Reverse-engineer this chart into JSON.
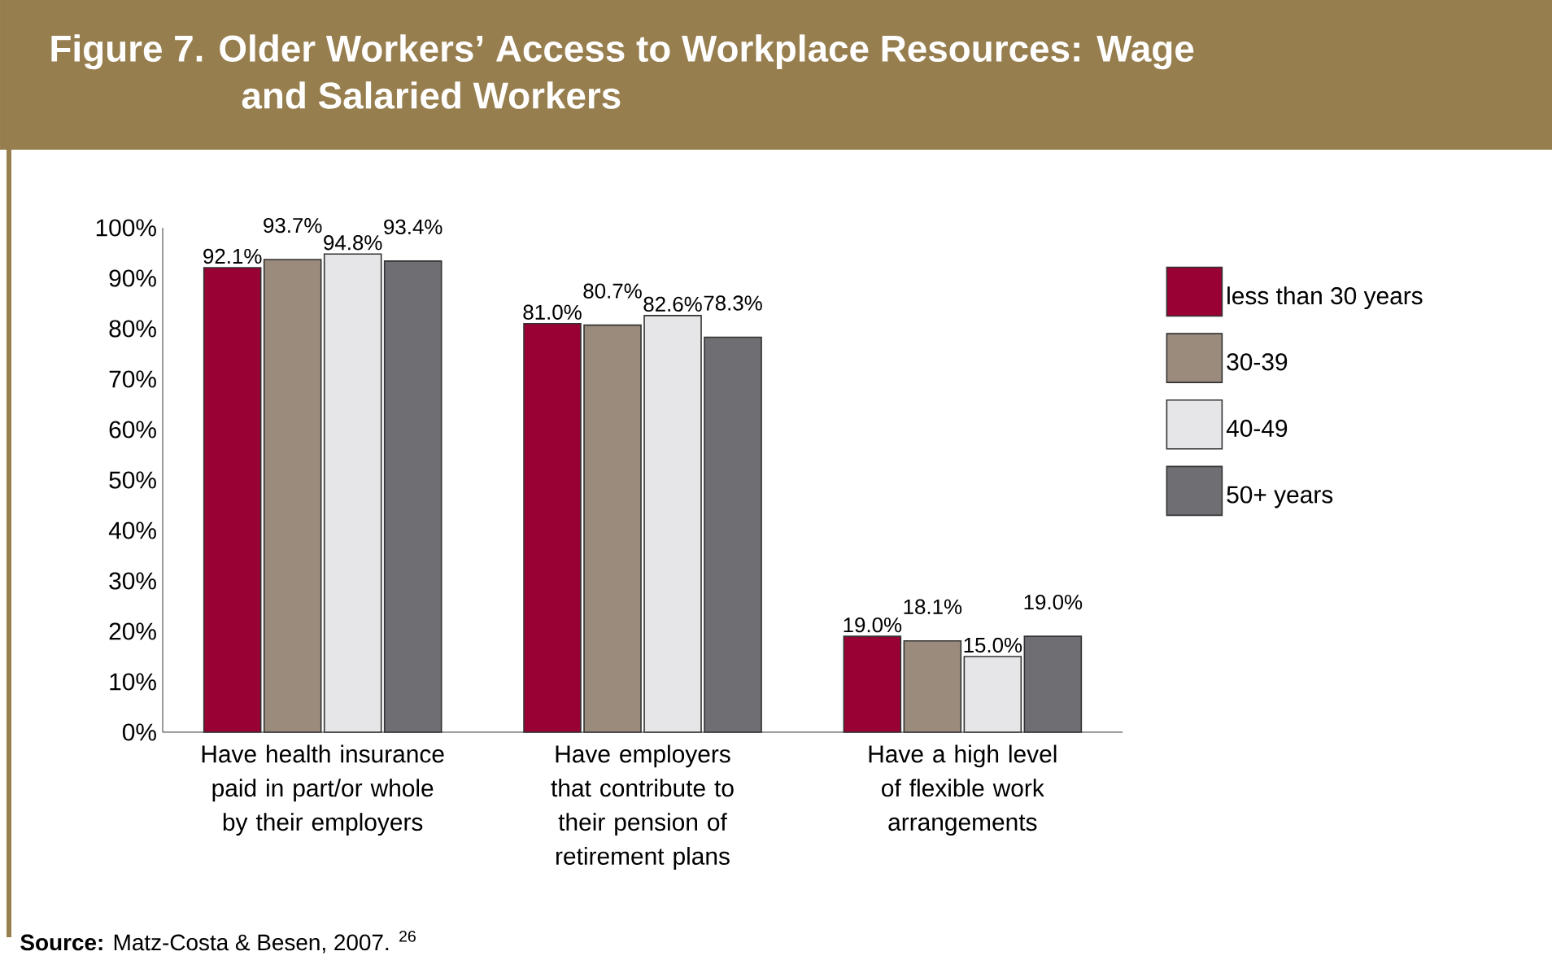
{
  "chart_data": {
    "type": "bar",
    "title": "Figure 7. Older Workers’ Access to Workplace Resources: Wage and Salaried Workers",
    "categories": [
      "Have health insurance paid in part/or whole by their employers",
      "Have employers that contribute to their pension of retirement plans",
      "Have a high level of flexible work arrangements"
    ],
    "series": [
      {
        "name": "less than 30 years",
        "color": "#990033",
        "values": [
          92.1,
          81.0,
          19.0
        ],
        "value_labels": [
          "92.1%",
          "81.0%",
          "19.0%"
        ]
      },
      {
        "name": "30-39",
        "color": "#9b8b7c",
        "values": [
          93.7,
          80.7,
          18.1
        ],
        "value_labels": [
          "93.7%",
          "80.7%",
          "18.1%"
        ]
      },
      {
        "name": "40-49",
        "color": "#e6e6e8",
        "values": [
          94.8,
          82.6,
          15.0
        ],
        "value_labels": [
          "94.8%",
          "82.6%",
          "15.0%"
        ]
      },
      {
        "name": "50+ years",
        "color": "#6f6e73",
        "values": [
          93.4,
          78.3,
          19.0
        ],
        "value_labels": [
          "93.4%",
          "78.3%",
          "19.0%"
        ]
      }
    ],
    "ylim": [
      0,
      100
    ],
    "yticks": [
      {
        "value": 0,
        "label": "0%"
      },
      {
        "value": 10,
        "label": "10%"
      },
      {
        "value": 20,
        "label": "20%"
      },
      {
        "value": 30,
        "label": "30%"
      },
      {
        "value": 40,
        "label": "40%"
      },
      {
        "value": 50,
        "label": "50%"
      },
      {
        "value": 60,
        "label": "60%"
      },
      {
        "value": 70,
        "label": "70%"
      },
      {
        "value": 80,
        "label": "80%"
      },
      {
        "value": 90,
        "label": "90%"
      },
      {
        "value": 100,
        "label": "100%"
      }
    ],
    "legend": "right",
    "annotations": [
      "**Source:** Matz-Costa & Besen, 2007. $^{26}$"
    ]
  }
}
